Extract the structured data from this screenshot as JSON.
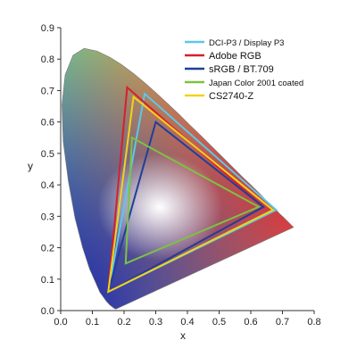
{
  "chart_data": {
    "type": "scatter",
    "title": "",
    "xlabel": "x",
    "ylabel": "y",
    "xlim": [
      0.0,
      0.8
    ],
    "ylim": [
      0.0,
      0.9
    ],
    "xticks": [
      "0.0",
      "0.1",
      "0.2",
      "0.3",
      "0.4",
      "0.5",
      "0.6",
      "0.7",
      "0.8"
    ],
    "yticks": [
      "0.0",
      "0.1",
      "0.2",
      "0.3",
      "0.4",
      "0.5",
      "0.6",
      "0.7",
      "0.8",
      "0.9"
    ],
    "grid": false,
    "legend_position": "top-right",
    "spectral_locus": [
      [
        0.175,
        0.005
      ],
      [
        0.174,
        0.005
      ],
      [
        0.173,
        0.005
      ],
      [
        0.169,
        0.007
      ],
      [
        0.164,
        0.011
      ],
      [
        0.155,
        0.018
      ],
      [
        0.144,
        0.03
      ],
      [
        0.124,
        0.058
      ],
      [
        0.091,
        0.133
      ],
      [
        0.069,
        0.201
      ],
      [
        0.045,
        0.295
      ],
      [
        0.024,
        0.413
      ],
      [
        0.008,
        0.538
      ],
      [
        0.004,
        0.655
      ],
      [
        0.014,
        0.75
      ],
      [
        0.039,
        0.812
      ],
      [
        0.074,
        0.834
      ],
      [
        0.114,
        0.826
      ],
      [
        0.155,
        0.806
      ],
      [
        0.193,
        0.782
      ],
      [
        0.23,
        0.754
      ],
      [
        0.266,
        0.724
      ],
      [
        0.302,
        0.692
      ],
      [
        0.337,
        0.659
      ],
      [
        0.373,
        0.625
      ],
      [
        0.408,
        0.59
      ],
      [
        0.444,
        0.555
      ],
      [
        0.479,
        0.52
      ],
      [
        0.512,
        0.487
      ],
      [
        0.544,
        0.455
      ],
      [
        0.575,
        0.424
      ],
      [
        0.603,
        0.397
      ],
      [
        0.627,
        0.373
      ],
      [
        0.648,
        0.351
      ],
      [
        0.666,
        0.334
      ],
      [
        0.68,
        0.32
      ],
      [
        0.691,
        0.308
      ],
      [
        0.701,
        0.299
      ],
      [
        0.735,
        0.265
      ]
    ],
    "white_point": [
      0.3127,
      0.329
    ],
    "series": [
      {
        "name": "DCI-P3 / Display P3",
        "color": "#5bc8e8",
        "points": [
          [
            0.68,
            0.32
          ],
          [
            0.265,
            0.69
          ],
          [
            0.15,
            0.06
          ]
        ]
      },
      {
        "name": "Adobe RGB",
        "color": "#d6202a",
        "points": [
          [
            0.64,
            0.33
          ],
          [
            0.21,
            0.71
          ],
          [
            0.15,
            0.06
          ]
        ]
      },
      {
        "name": "sRGB / BT.709",
        "color": "#1f3f9a",
        "points": [
          [
            0.64,
            0.33
          ],
          [
            0.3,
            0.6
          ],
          [
            0.15,
            0.06
          ]
        ]
      },
      {
        "name": "Japan Color 2001 coated",
        "color": "#7dc242",
        "points": [
          [
            0.625,
            0.33
          ],
          [
            0.225,
            0.55
          ],
          [
            0.205,
            0.15
          ]
        ]
      },
      {
        "name": "CS2740-Z",
        "color": "#f2d21b",
        "points": [
          [
            0.67,
            0.32
          ],
          [
            0.23,
            0.68
          ],
          [
            0.15,
            0.06
          ]
        ]
      }
    ]
  }
}
